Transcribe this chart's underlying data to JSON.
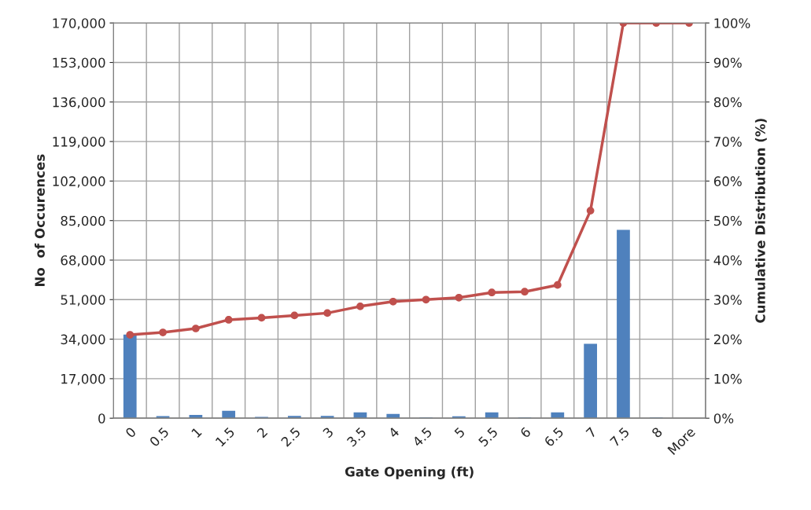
{
  "chart_data": {
    "type": "bar",
    "xlabel": "Gate Opening (ft)",
    "ylabel": "No  of Occurences",
    "y2label": "Cumulative Distribution (%)",
    "categories": [
      "0",
      "0.5",
      "1",
      "1.5",
      "2",
      "2.5",
      "3",
      "3.5",
      "4",
      "4.5",
      "5",
      "5.5",
      "6",
      "6.5",
      "7",
      "7.5",
      "8",
      "More"
    ],
    "series": [
      {
        "color": "#4f81bd",
        "values": [
          36000,
          900,
          1400,
          3200,
          600,
          1000,
          1000,
          2500,
          1800,
          300,
          800,
          2500,
          300,
          2500,
          32000,
          81000,
          300,
          0
        ]
      },
      {
        "type": "line",
        "axis": "y2",
        "color": "#c0504d",
        "marker": "circle",
        "values": [
          21.1,
          21.7,
          22.7,
          24.9,
          25.4,
          26.0,
          26.6,
          28.3,
          29.5,
          30.0,
          30.5,
          31.8,
          32.0,
          33.7,
          52.5,
          100,
          100,
          100
        ]
      }
    ],
    "ylim": [
      0,
      170000
    ],
    "yticks": [
      {
        "value": 0,
        "label": "0"
      },
      {
        "value": 17000,
        "label": "17,000"
      },
      {
        "value": 34000,
        "label": "34,000"
      },
      {
        "value": 51000,
        "label": "51,000"
      },
      {
        "value": 68000,
        "label": "68,000"
      },
      {
        "value": 85000,
        "label": "85,000"
      },
      {
        "value": 102000,
        "label": "102,000"
      },
      {
        "value": 119000,
        "label": "119,000"
      },
      {
        "value": 136000,
        "label": "136,000"
      },
      {
        "value": 153000,
        "label": "153,000"
      },
      {
        "value": 170000,
        "label": "170,000"
      }
    ],
    "y2lim": [
      0,
      100
    ],
    "y2ticks": [
      {
        "value": 0,
        "label": "0%"
      },
      {
        "value": 10,
        "label": "10%"
      },
      {
        "value": 20,
        "label": "20%"
      },
      {
        "value": 30,
        "label": "30%"
      },
      {
        "value": 40,
        "label": "40%"
      },
      {
        "value": 50,
        "label": "50%"
      },
      {
        "value": 60,
        "label": "60%"
      },
      {
        "value": 70,
        "label": "70%"
      },
      {
        "value": 80,
        "label": "80%"
      },
      {
        "value": 90,
        "label": "90%"
      },
      {
        "value": 100,
        "label": "100%"
      }
    ],
    "grid": true
  }
}
